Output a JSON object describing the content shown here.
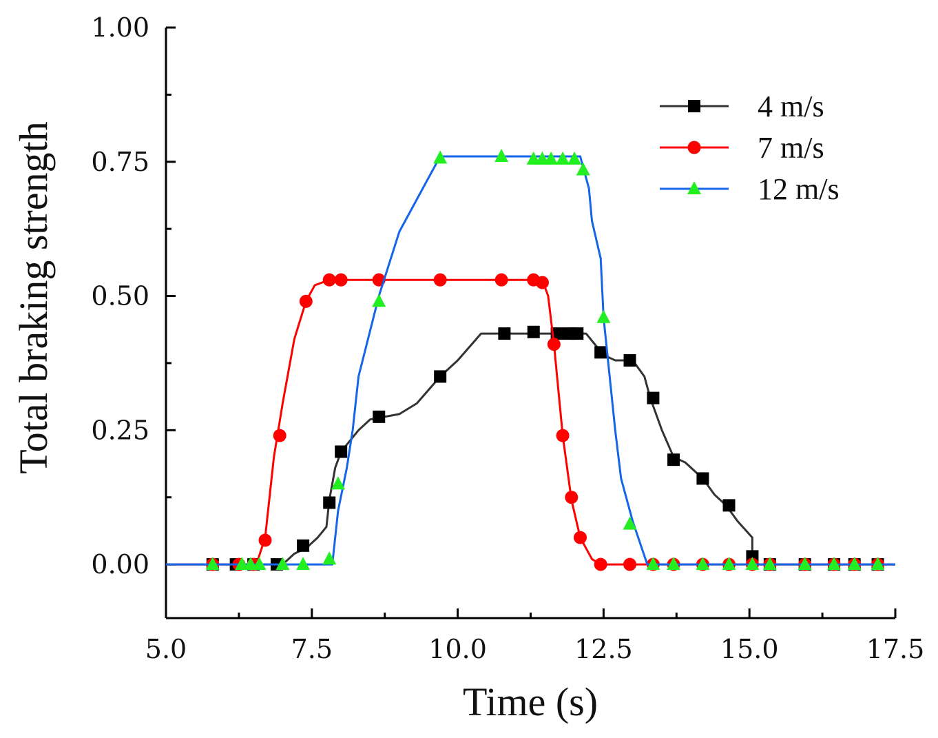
{
  "chart_data": {
    "type": "line",
    "title": "",
    "xlabel": "Time (s)",
    "ylabel": "Total braking strength",
    "xlim": [
      5.0,
      17.5
    ],
    "ylim": [
      -0.1,
      1.0
    ],
    "xticks": [
      "5.0",
      "7.5",
      "10.0",
      "12.5",
      "15.0",
      "17.5"
    ],
    "yticks": [
      "0.00",
      "0.25",
      "0.50",
      "0.75",
      "1.00"
    ],
    "legend_position": "top-right",
    "series": [
      {
        "name": "4 m/s",
        "color": "#333333",
        "marker_color": "#000000",
        "marker": "square",
        "line": [
          [
            5.0,
            0
          ],
          [
            7.0,
            0
          ],
          [
            7.2,
            0.02
          ],
          [
            7.4,
            0.03
          ],
          [
            7.6,
            0.05
          ],
          [
            7.75,
            0.07
          ],
          [
            7.8,
            0.12
          ],
          [
            7.85,
            0.15
          ],
          [
            7.9,
            0.18
          ],
          [
            8.0,
            0.21
          ],
          [
            8.15,
            0.23
          ],
          [
            8.3,
            0.25
          ],
          [
            8.5,
            0.27
          ],
          [
            9.0,
            0.28
          ],
          [
            9.3,
            0.3
          ],
          [
            9.7,
            0.35
          ],
          [
            10.0,
            0.38
          ],
          [
            10.4,
            0.43
          ],
          [
            10.8,
            0.43
          ],
          [
            12.2,
            0.43
          ],
          [
            12.5,
            0.39
          ],
          [
            12.7,
            0.38
          ],
          [
            13.0,
            0.38
          ],
          [
            13.2,
            0.35
          ],
          [
            13.3,
            0.31
          ],
          [
            13.5,
            0.25
          ],
          [
            13.7,
            0.2
          ],
          [
            13.9,
            0.19
          ],
          [
            14.2,
            0.16
          ],
          [
            14.4,
            0.13
          ],
          [
            14.6,
            0.11
          ],
          [
            14.8,
            0.08
          ],
          [
            15.05,
            0.05
          ],
          [
            15.05,
            0
          ],
          [
            17.5,
            0
          ]
        ],
        "markers": [
          [
            5.8,
            0
          ],
          [
            6.2,
            0
          ],
          [
            6.5,
            0
          ],
          [
            6.9,
            0
          ],
          [
            7.35,
            0.035
          ],
          [
            7.8,
            0.115
          ],
          [
            8.0,
            0.21
          ],
          [
            8.65,
            0.275
          ],
          [
            9.7,
            0.35
          ],
          [
            10.8,
            0.43
          ],
          [
            11.3,
            0.433
          ],
          [
            11.7,
            0.43
          ],
          [
            11.9,
            0.43
          ],
          [
            12.05,
            0.43
          ],
          [
            12.45,
            0.395
          ],
          [
            12.95,
            0.38
          ],
          [
            13.35,
            0.31
          ],
          [
            13.7,
            0.195
          ],
          [
            14.2,
            0.16
          ],
          [
            14.65,
            0.11
          ],
          [
            15.05,
            0.015
          ],
          [
            15.35,
            0
          ],
          [
            15.95,
            0
          ],
          [
            16.45,
            0
          ],
          [
            16.8,
            0
          ],
          [
            17.2,
            0
          ]
        ]
      },
      {
        "name": "7 m/s",
        "color": "#ff0000",
        "marker_color": "#ff0000",
        "marker": "circle",
        "line": [
          [
            5.0,
            0
          ],
          [
            6.55,
            0
          ],
          [
            6.7,
            0.05
          ],
          [
            6.85,
            0.2
          ],
          [
            7.0,
            0.3
          ],
          [
            7.2,
            0.42
          ],
          [
            7.4,
            0.49
          ],
          [
            7.55,
            0.52
          ],
          [
            7.8,
            0.53
          ],
          [
            11.45,
            0.53
          ],
          [
            11.55,
            0.5
          ],
          [
            11.65,
            0.41
          ],
          [
            11.8,
            0.24
          ],
          [
            11.95,
            0.12
          ],
          [
            12.1,
            0.05
          ],
          [
            12.3,
            0.01
          ],
          [
            12.45,
            0
          ],
          [
            17.5,
            0
          ]
        ],
        "markers": [
          [
            5.8,
            0
          ],
          [
            6.25,
            0
          ],
          [
            6.5,
            0
          ],
          [
            6.7,
            0.045
          ],
          [
            6.95,
            0.24
          ],
          [
            7.4,
            0.49
          ],
          [
            7.8,
            0.53
          ],
          [
            8.0,
            0.53
          ],
          [
            8.65,
            0.53
          ],
          [
            9.7,
            0.53
          ],
          [
            10.75,
            0.53
          ],
          [
            11.3,
            0.53
          ],
          [
            11.45,
            0.525
          ],
          [
            11.65,
            0.41
          ],
          [
            11.8,
            0.24
          ],
          [
            11.95,
            0.125
          ],
          [
            12.1,
            0.05
          ],
          [
            12.45,
            0
          ],
          [
            12.95,
            0
          ],
          [
            13.35,
            0
          ],
          [
            13.7,
            0
          ],
          [
            14.2,
            0
          ],
          [
            14.65,
            0
          ],
          [
            15.05,
            0
          ],
          [
            15.35,
            0
          ],
          [
            15.95,
            0
          ],
          [
            16.45,
            0
          ],
          [
            16.8,
            0
          ],
          [
            17.2,
            0
          ]
        ]
      },
      {
        "name": "12 m/s",
        "color": "#1565e8",
        "marker_color": "#22ee22",
        "marker": "triangle",
        "line": [
          [
            5.0,
            0
          ],
          [
            7.85,
            0
          ],
          [
            7.95,
            0.1
          ],
          [
            8.1,
            0.18
          ],
          [
            8.2,
            0.25
          ],
          [
            8.3,
            0.35
          ],
          [
            8.65,
            0.5
          ],
          [
            9.0,
            0.62
          ],
          [
            9.5,
            0.72
          ],
          [
            9.7,
            0.76
          ],
          [
            12.1,
            0.76
          ],
          [
            12.25,
            0.7
          ],
          [
            12.3,
            0.64
          ],
          [
            12.45,
            0.57
          ],
          [
            12.5,
            0.46
          ],
          [
            12.7,
            0.25
          ],
          [
            12.8,
            0.16
          ],
          [
            13.0,
            0.08
          ],
          [
            13.25,
            0
          ],
          [
            17.5,
            0
          ]
        ],
        "markers": [
          [
            5.8,
            0
          ],
          [
            6.3,
            0
          ],
          [
            6.45,
            0
          ],
          [
            6.6,
            0
          ],
          [
            7.0,
            0
          ],
          [
            7.35,
            0
          ],
          [
            7.8,
            0.01
          ],
          [
            7.95,
            0.15
          ],
          [
            8.65,
            0.49
          ],
          [
            9.7,
            0.757
          ],
          [
            10.75,
            0.76
          ],
          [
            11.3,
            0.755
          ],
          [
            11.45,
            0.755
          ],
          [
            11.6,
            0.755
          ],
          [
            11.8,
            0.755
          ],
          [
            12.0,
            0.755
          ],
          [
            12.15,
            0.735
          ],
          [
            12.5,
            0.46
          ],
          [
            12.95,
            0.075
          ],
          [
            13.35,
            0
          ],
          [
            13.7,
            0
          ],
          [
            14.2,
            0
          ],
          [
            14.65,
            0
          ],
          [
            15.05,
            0
          ],
          [
            15.35,
            0
          ],
          [
            15.95,
            0
          ],
          [
            16.45,
            0
          ],
          [
            16.8,
            0
          ],
          [
            17.2,
            0
          ]
        ]
      }
    ]
  }
}
